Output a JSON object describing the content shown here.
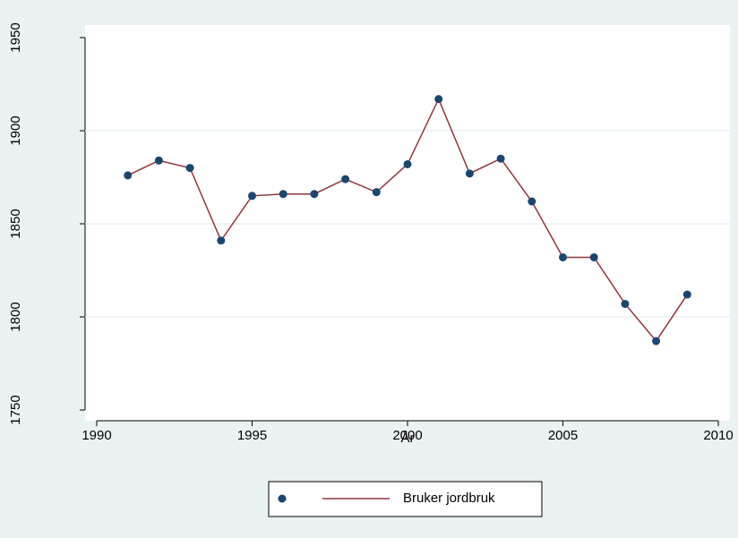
{
  "chart_data": {
    "type": "line",
    "x_label": "År",
    "x": [
      1991,
      1992,
      1993,
      1994,
      1995,
      1996,
      1997,
      1998,
      1999,
      2000,
      2001,
      2002,
      2003,
      2004,
      2005,
      2006,
      2007,
      2008,
      2009
    ],
    "series": [
      {
        "name": "Bruker jordbruk",
        "color": "#90353b",
        "marker_color": "#1a476f",
        "values": [
          1876,
          1884,
          1880,
          1841,
          1865,
          1866,
          1866,
          1874,
          1867,
          1882,
          1917,
          1877,
          1885,
          1862,
          1832,
          1832,
          1807,
          1787,
          1812
        ]
      }
    ],
    "xlim": [
      1990,
      2010
    ],
    "xticks": [
      1990,
      1995,
      2000,
      2005,
      2010
    ],
    "ylim": [
      1750,
      1950
    ],
    "yticks": [
      1750,
      1800,
      1850,
      1900,
      1950
    ],
    "grid": true,
    "legend": "bottom"
  }
}
